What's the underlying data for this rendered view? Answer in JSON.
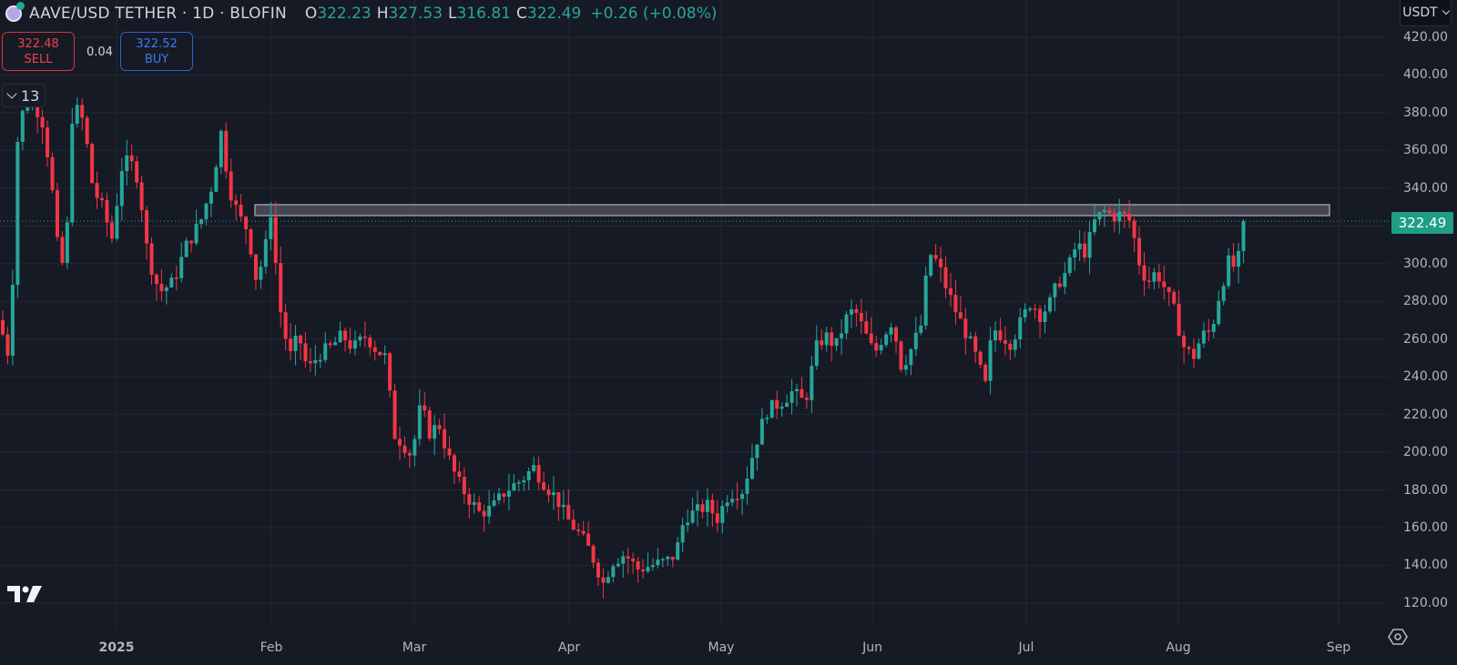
{
  "header": {
    "symbol_title": "AAVE/USD TETHER · 1D · BLOFIN",
    "ohlc": [
      {
        "key": "O",
        "value": "322.23"
      },
      {
        "key": "H",
        "value": "327.53"
      },
      {
        "key": "L",
        "value": "316.81"
      },
      {
        "key": "C",
        "value": "322.49"
      }
    ],
    "change": "+0.26 (+0.08%)"
  },
  "trade": {
    "sell_price": "322.48",
    "sell_label": "SELL",
    "spread": "0.04",
    "buy_price": "322.52",
    "buy_label": "BUY"
  },
  "indicators": {
    "collapsed_count": "13"
  },
  "price_scale": {
    "currency": "USDT",
    "labels": [
      "420.00",
      "400.00",
      "380.00",
      "360.00",
      "340.00",
      "300.00",
      "280.00",
      "260.00",
      "240.00",
      "220.00",
      "200.00",
      "180.00",
      "160.00",
      "140.00",
      "120.00"
    ],
    "last_price": "322.49"
  },
  "time_scale": {
    "labels": [
      "2025",
      "Feb",
      "Mar",
      "Apr",
      "May",
      "Jun",
      "Jul",
      "Aug",
      "Sep"
    ]
  },
  "icons": {
    "logo": "tradingview-logo-icon",
    "settings": "settings-hexagon-icon",
    "symbol": "aave-coin-icon"
  },
  "colors": {
    "background": "#161a25",
    "up": "#26a69a",
    "down": "#f23645",
    "grid": "#232734",
    "zone": "#6b6e78",
    "last_price_bg": "#1e9e86"
  },
  "chart_data": {
    "type": "candlestick",
    "title": "AAVE/USD TETHER · 1D · BLOFIN",
    "xlabel": "",
    "ylabel": "USDT",
    "ylim": [
      110,
      425
    ],
    "x_ticks": [
      "2025",
      "Feb",
      "Mar",
      "Apr",
      "May",
      "Jun",
      "Jul",
      "Aug",
      "Sep"
    ],
    "y_ticks": [
      120,
      140,
      160,
      180,
      200,
      220,
      240,
      260,
      280,
      300,
      320,
      340,
      360,
      380,
      400,
      420
    ],
    "grid": true,
    "last": {
      "open": 322.23,
      "high": 327.53,
      "low": 316.81,
      "close": 322.49,
      "change": 0.26,
      "change_pct": 0.08
    },
    "resistance_zone": {
      "from": 328,
      "to": 333,
      "start": "late Jan 2025",
      "end": "right edge"
    },
    "close_path": [
      {
        "x": "mid Dec 2024",
        "close": 270
      },
      {
        "x": "late Dec 2024",
        "close": 380
      },
      {
        "x": "early Jan 2025",
        "close": 320
      },
      {
        "x": "mid Jan 2025",
        "close": 285
      },
      {
        "x": "~20 Jan 2025",
        "close": 370
      },
      {
        "x": "late Jan 2025",
        "close": 290
      },
      {
        "x": "31 Jan 2025",
        "close": 330
      },
      {
        "x": "early Feb 2025",
        "close": 250
      },
      {
        "x": "mid Feb 2025",
        "close": 262
      },
      {
        "x": "late Feb 2025",
        "close": 205
      },
      {
        "x": "early Mar 2025",
        "close": 225
      },
      {
        "x": "mid Mar 2025",
        "close": 168
      },
      {
        "x": "late Mar 2025",
        "close": 190
      },
      {
        "x": "~8 Apr 2025",
        "close": 130
      },
      {
        "x": "mid Apr 2025",
        "close": 140
      },
      {
        "x": "late Apr 2025",
        "close": 172
      },
      {
        "x": "early May 2025",
        "close": 205
      },
      {
        "x": "mid May 2025",
        "close": 232
      },
      {
        "x": "late May 2025",
        "close": 270
      },
      {
        "x": "early Jun 2025",
        "close": 250
      },
      {
        "x": "~10 Jun 2025",
        "close": 305
      },
      {
        "x": "~22 Jun 2025",
        "close": 240
      },
      {
        "x": "early Jul 2025",
        "close": 270
      },
      {
        "x": "mid Jul 2025",
        "close": 328
      },
      {
        "x": "late Jul 2025",
        "close": 290
      },
      {
        "x": "~2 Aug 2025",
        "close": 252
      },
      {
        "x": "~10 Aug 2025",
        "close": 300
      },
      {
        "x": "~13 Aug 2025",
        "close": 322.49
      }
    ]
  }
}
